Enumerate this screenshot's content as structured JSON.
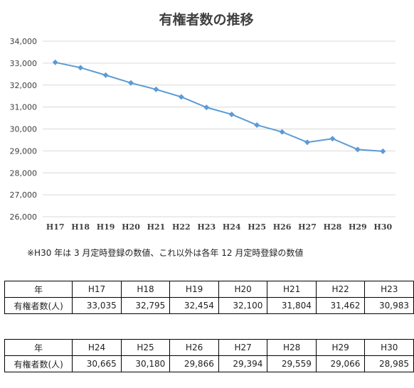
{
  "chart_data": {
    "type": "line",
    "title": "有権者数の推移",
    "xlabel": "",
    "ylabel": "",
    "categories": [
      "H17",
      "H18",
      "H19",
      "H20",
      "H21",
      "H22",
      "H23",
      "H24",
      "H25",
      "H26",
      "H27",
      "H28",
      "H29",
      "H30"
    ],
    "series": [
      {
        "values": [
          33035,
          32795,
          32454,
          32100,
          31804,
          31462,
          30983,
          30665,
          30180,
          29866,
          29394,
          29559,
          29066,
          28985
        ]
      }
    ],
    "ylim": [
      26000,
      34000
    ],
    "yticks": [
      26000,
      27000,
      28000,
      29000,
      30000,
      31000,
      32000,
      33000,
      34000
    ],
    "ytick_labels": [
      "26,000",
      "27,000",
      "28,000",
      "29,000",
      "30,000",
      "31,000",
      "32,000",
      "33,000",
      "34,000"
    ],
    "grid": true,
    "legend": "none",
    "marker": "diamond",
    "line_color": "#5b9bd5"
  },
  "note": "※H30 年は 3 月定時登録の数値、これ以外は各年 12 月定時登録の数値",
  "tables": [
    {
      "header_label": "年",
      "row_label": "有権者数(人)",
      "years": [
        "H17",
        "H18",
        "H19",
        "H20",
        "H21",
        "H22",
        "H23"
      ],
      "values": [
        "33,035",
        "32,795",
        "32,454",
        "32,100",
        "31,804",
        "31,462",
        "30,983"
      ]
    },
    {
      "header_label": "年",
      "row_label": "有権者数(人)",
      "years": [
        "H24",
        "H25",
        "H26",
        "H27",
        "H28",
        "H29",
        "H30"
      ],
      "values": [
        "30,665",
        "30,180",
        "29,866",
        "29,394",
        "29,559",
        "29,066",
        "28,985"
      ]
    }
  ]
}
